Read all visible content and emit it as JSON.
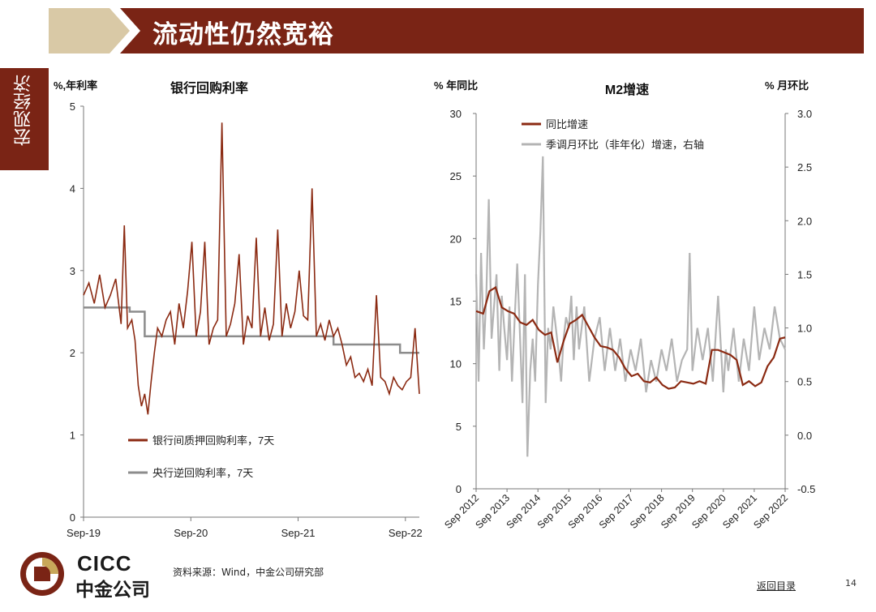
{
  "header": {
    "title": "流动性仍然宽裕"
  },
  "side_tab": {
    "label": "宏观经济"
  },
  "footer": {
    "source": "资料来源：Wind，中金公司研究部",
    "back_link": "返回目录",
    "page_number": "14"
  },
  "logo": {
    "en": "CICC",
    "cn": "中金公司"
  },
  "colors": {
    "brand": "#7a2415",
    "series_rate": "#8b2a12",
    "series_policy": "#8c8c8c",
    "series_mom": "#b4b4b4",
    "banner_light": "#d9c9a6"
  },
  "chart_data": [
    {
      "type": "line",
      "title": "银行回购利率",
      "ylabel": "%,年利率",
      "ylim": [
        0,
        5
      ],
      "yticks": [
        "0",
        "1",
        "2",
        "3",
        "4",
        "5"
      ],
      "xticks": [
        "Sep-19",
        "Sep-20",
        "Sep-21",
        "Sep-22"
      ],
      "x_range_years": [
        2019.67,
        2022.8
      ],
      "legend": "bottom-left",
      "series": [
        {
          "name": "银行间质押回购利率，7天",
          "x": [
            2019.67,
            2019.72,
            2019.77,
            2019.82,
            2019.87,
            2019.92,
            2019.97,
            2020.02,
            2020.05,
            2020.08,
            2020.12,
            2020.15,
            2020.18,
            2020.21,
            2020.24,
            2020.27,
            2020.3,
            2020.33,
            2020.36,
            2020.4,
            2020.44,
            2020.48,
            2020.52,
            2020.56,
            2020.6,
            2020.64,
            2020.68,
            2020.72,
            2020.76,
            2020.8,
            2020.84,
            2020.88,
            2020.92,
            2020.96,
            2021.0,
            2021.04,
            2021.08,
            2021.12,
            2021.16,
            2021.2,
            2021.24,
            2021.28,
            2021.32,
            2021.36,
            2021.4,
            2021.44,
            2021.48,
            2021.52,
            2021.56,
            2021.6,
            2021.64,
            2021.68,
            2021.72,
            2021.76,
            2021.8,
            2021.84,
            2021.88,
            2021.92,
            2021.96,
            2022.0,
            2022.04,
            2022.08,
            2022.12,
            2022.16,
            2022.2,
            2022.24,
            2022.28,
            2022.32,
            2022.36,
            2022.4,
            2022.44,
            2022.48,
            2022.52,
            2022.56,
            2022.6,
            2022.64,
            2022.68,
            2022.72,
            2022.76,
            2022.8
          ],
          "values": [
            2.7,
            2.85,
            2.6,
            2.95,
            2.55,
            2.7,
            2.9,
            2.35,
            3.55,
            2.3,
            2.4,
            2.15,
            1.6,
            1.35,
            1.5,
            1.25,
            1.65,
            2.0,
            2.3,
            2.2,
            2.4,
            2.5,
            2.1,
            2.6,
            2.3,
            2.75,
            3.35,
            2.2,
            2.5,
            3.35,
            2.1,
            2.3,
            2.4,
            4.8,
            2.2,
            2.35,
            2.6,
            3.2,
            2.1,
            2.45,
            2.3,
            3.4,
            2.2,
            2.55,
            2.15,
            2.35,
            3.5,
            2.2,
            2.6,
            2.3,
            2.5,
            3.0,
            2.45,
            2.4,
            4.0,
            2.2,
            2.35,
            2.15,
            2.4,
            2.2,
            2.3,
            2.1,
            1.85,
            1.95,
            1.7,
            1.75,
            1.65,
            1.8,
            1.6,
            2.7,
            1.7,
            1.65,
            1.5,
            1.7,
            1.6,
            1.55,
            1.65,
            1.7,
            2.3,
            1.5
          ]
        },
        {
          "name": "央行逆回购利率，7天",
          "x": [
            2019.67,
            2019.92,
            2020.1,
            2020.24,
            2021.7,
            2022.0,
            2022.62,
            2022.8
          ],
          "values": [
            2.55,
            2.55,
            2.5,
            2.2,
            2.2,
            2.1,
            2.0,
            2.0
          ]
        }
      ]
    },
    {
      "type": "line",
      "title": "M2增速",
      "ylabel": "% 年同比",
      "y2label": "% 月环比",
      "ylim": [
        0,
        30
      ],
      "y2lim": [
        -0.5,
        3.0
      ],
      "yticks": [
        "0",
        "5",
        "10",
        "15",
        "20",
        "25",
        "30"
      ],
      "y2ticks": [
        "-0.5",
        "0.0",
        "0.5",
        "1.0",
        "1.5",
        "2.0",
        "2.5",
        "3.0"
      ],
      "xticks": [
        "Sep 2012",
        "Sep 2013",
        "Sep 2014",
        "Sep 2015",
        "Sep 2016",
        "Sep 2017",
        "Sep 2018",
        "Sep 2019",
        "Sep 2020",
        "Sep 2021",
        "Sep 2022"
      ],
      "x_range_years": [
        2012.67,
        2022.67
      ],
      "legend": "top-left",
      "series": [
        {
          "name": "同比增速",
          "axis": "left",
          "x": [
            2012.67,
            2012.9,
            2013.1,
            2013.3,
            2013.5,
            2013.7,
            2013.9,
            2014.1,
            2014.3,
            2014.5,
            2014.7,
            2014.9,
            2015.1,
            2015.3,
            2015.5,
            2015.7,
            2015.9,
            2016.1,
            2016.3,
            2016.5,
            2016.7,
            2016.9,
            2017.1,
            2017.3,
            2017.5,
            2017.7,
            2017.9,
            2018.1,
            2018.3,
            2018.5,
            2018.7,
            2018.9,
            2019.1,
            2019.3,
            2019.5,
            2019.7,
            2019.9,
            2020.1,
            2020.3,
            2020.5,
            2020.7,
            2020.9,
            2021.1,
            2021.3,
            2021.5,
            2021.7,
            2021.9,
            2022.1,
            2022.3,
            2022.5,
            2022.67
          ],
          "values": [
            14.2,
            14.0,
            15.8,
            16.1,
            14.5,
            14.2,
            14.0,
            13.3,
            13.1,
            13.5,
            12.7,
            12.3,
            12.5,
            10.1,
            11.8,
            13.2,
            13.5,
            13.9,
            13.0,
            12.1,
            11.4,
            11.3,
            11.1,
            10.5,
            9.6,
            9.0,
            9.2,
            8.6,
            8.5,
            8.9,
            8.3,
            8.0,
            8.1,
            8.6,
            8.5,
            8.4,
            8.6,
            8.4,
            11.1,
            11.1,
            10.9,
            10.7,
            10.3,
            8.3,
            8.6,
            8.2,
            8.5,
            9.8,
            10.5,
            12.0,
            12.1
          ]
        },
        {
          "name": "季调月环比（非年化）增速，右轴",
          "axis": "right",
          "x": [
            2012.67,
            2012.75,
            2012.83,
            2012.92,
            2013.0,
            2013.08,
            2013.17,
            2013.25,
            2013.33,
            2013.42,
            2013.5,
            2013.58,
            2013.67,
            2013.75,
            2013.83,
            2013.92,
            2014.0,
            2014.08,
            2014.17,
            2014.25,
            2014.33,
            2014.42,
            2014.5,
            2014.58,
            2014.67,
            2014.75,
            2014.83,
            2014.92,
            2015.0,
            2015.08,
            2015.17,
            2015.25,
            2015.33,
            2015.42,
            2015.5,
            2015.58,
            2015.67,
            2015.75,
            2015.83,
            2015.92,
            2016.0,
            2016.17,
            2016.33,
            2016.5,
            2016.67,
            2016.83,
            2017.0,
            2017.17,
            2017.33,
            2017.5,
            2017.67,
            2017.83,
            2018.0,
            2018.17,
            2018.33,
            2018.5,
            2018.67,
            2018.83,
            2019.0,
            2019.17,
            2019.33,
            2019.5,
            2019.58,
            2019.67,
            2019.83,
            2020.0,
            2020.17,
            2020.33,
            2020.5,
            2020.67,
            2020.75,
            2020.83,
            2021.0,
            2021.17,
            2021.33,
            2021.5,
            2021.67,
            2021.83,
            2022.0,
            2022.17,
            2022.33,
            2022.5,
            2022.67
          ],
          "values": [
            1.5,
            0.5,
            1.7,
            0.8,
            1.3,
            2.2,
            0.9,
            1.2,
            1.5,
            0.6,
            1.3,
            1.0,
            0.7,
            1.2,
            0.5,
            1.1,
            1.6,
            1.0,
            0.3,
            1.5,
            -0.2,
            0.6,
            0.9,
            0.5,
            1.4,
            1.9,
            2.6,
            0.3,
            1.0,
            0.8,
            1.2,
            1.0,
            0.8,
            0.5,
            0.9,
            1.1,
            1.0,
            1.3,
            0.7,
            1.2,
            0.8,
            1.2,
            0.5,
            0.9,
            1.1,
            0.6,
            1.0,
            0.6,
            0.9,
            0.5,
            0.8,
            0.6,
            0.9,
            0.4,
            0.7,
            0.5,
            0.8,
            0.6,
            0.9,
            0.5,
            0.7,
            0.8,
            1.7,
            0.6,
            1.0,
            0.7,
            1.0,
            0.5,
            1.3,
            0.4,
            0.8,
            0.6,
            1.0,
            0.5,
            0.9,
            0.6,
            1.2,
            0.7,
            1.0,
            0.8,
            1.2,
            0.9,
            0.8
          ]
        }
      ]
    }
  ]
}
